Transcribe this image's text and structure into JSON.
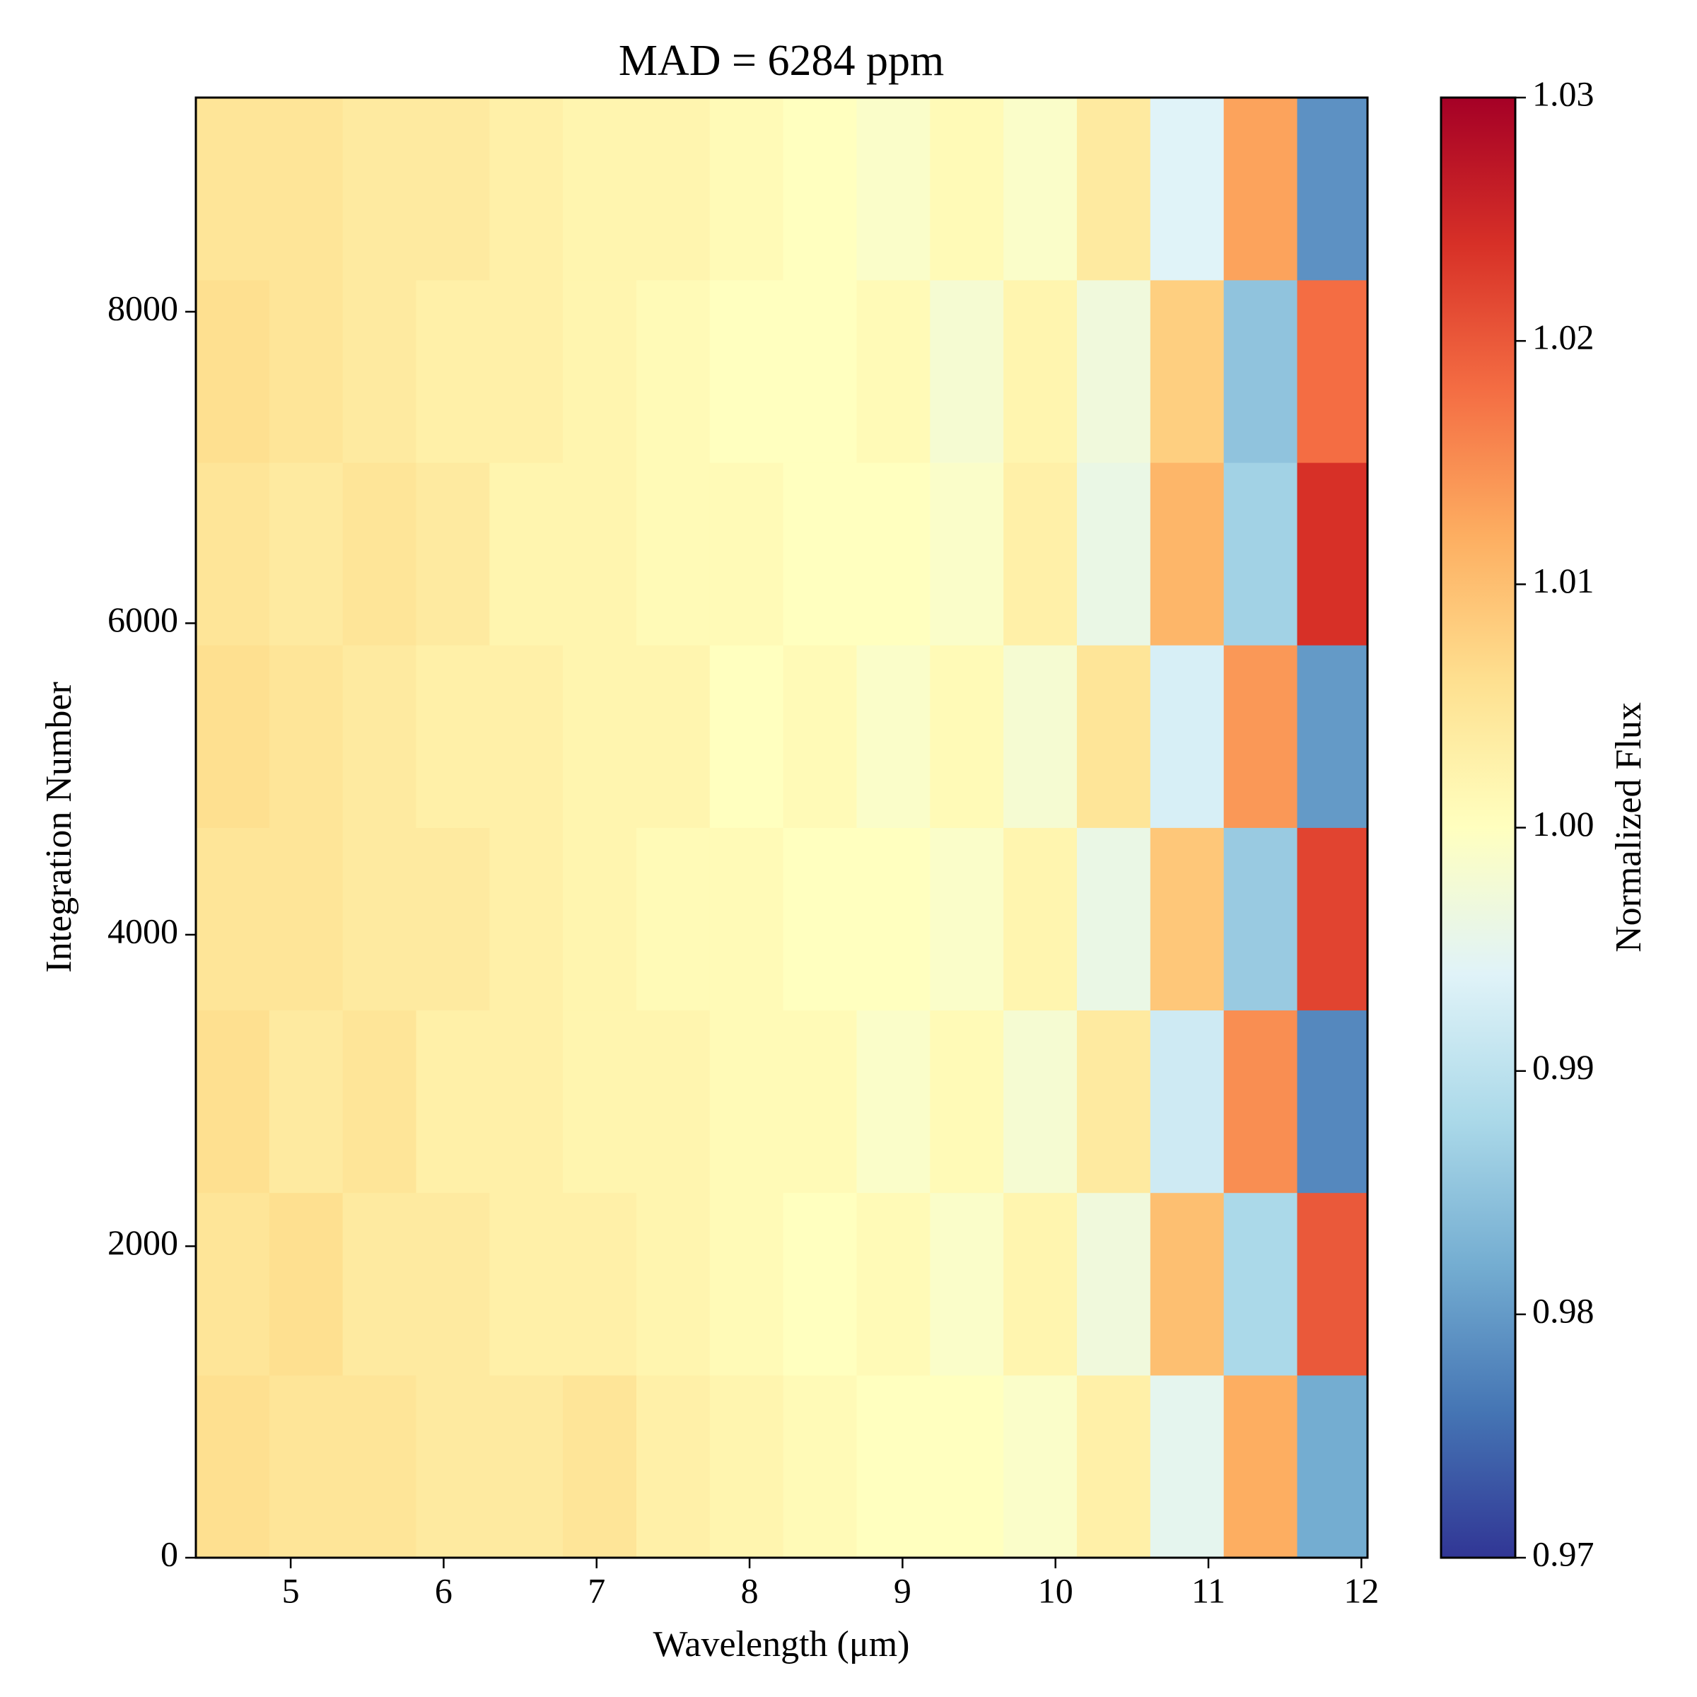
{
  "chart_data": {
    "type": "heatmap",
    "title": "MAD = 6284 ppm",
    "x_label": "Wavelength (μm)",
    "y_label": "Integration Number",
    "colorbar_label": "Normalized Flux",
    "xlim": [
      4.38,
      12.04
    ],
    "ylim": [
      0,
      9375
    ],
    "xticks": [
      5,
      6,
      7,
      8,
      9,
      10,
      11,
      12
    ],
    "yticks": [
      0,
      2000,
      4000,
      6000,
      8000
    ],
    "clim": [
      0.97,
      1.03
    ],
    "cticks": [
      0.97,
      0.98,
      0.99,
      {
        "value": 1,
        "label": "1.00"
      },
      1.01,
      1.02,
      1.03
    ],
    "colormap": [
      "#313695",
      "#4575b4",
      "#74add1",
      "#abd9e9",
      "#e0f3f8",
      "#ffffbf",
      "#fee090",
      "#fdae61",
      "#f46d43",
      "#d73027",
      "#a50026"
    ],
    "x": [
      4.62,
      5.1,
      5.58,
      6.06,
      6.54,
      7.02,
      7.5,
      7.98,
      8.46,
      8.94,
      9.42,
      9.9,
      10.38,
      10.86,
      11.34,
      11.82
    ],
    "y": [
      586,
      1758,
      2930,
      4102,
      5274,
      6446,
      7618,
      8790
    ],
    "z": [
      [
        1.006,
        1.005,
        1.005,
        1.004,
        1.004,
        1.005,
        1.003,
        1.002,
        1.001,
        1.0,
        1.0,
        0.999,
        1.003,
        0.995,
        1.012,
        0.982
      ],
      [
        1.005,
        1.006,
        1.004,
        1.004,
        1.003,
        1.003,
        1.002,
        1.001,
        1.0,
        1.001,
        0.999,
        1.002,
        0.997,
        1.01,
        0.988,
        1.02
      ],
      [
        1.006,
        1.004,
        1.005,
        1.003,
        1.003,
        1.002,
        1.002,
        1.001,
        1.001,
        0.999,
        1.001,
        0.998,
        1.004,
        0.992,
        1.015,
        0.978
      ],
      [
        1.005,
        1.005,
        1.004,
        1.004,
        1.003,
        1.002,
        1.001,
        1.001,
        1.0,
        1.0,
        0.999,
        1.002,
        0.996,
        1.009,
        0.986,
        1.022
      ],
      [
        1.006,
        1.005,
        1.004,
        1.003,
        1.003,
        1.002,
        1.002,
        1.0,
        1.001,
        0.999,
        1.001,
        0.998,
        1.005,
        0.993,
        1.014,
        0.98
      ],
      [
        1.005,
        1.004,
        1.005,
        1.004,
        1.002,
        1.002,
        1.001,
        1.001,
        1.0,
        1.0,
        0.999,
        1.003,
        0.996,
        1.011,
        0.987,
        1.024
      ],
      [
        1.006,
        1.005,
        1.004,
        1.003,
        1.003,
        1.002,
        1.001,
        1.0,
        1.0,
        1.001,
        0.998,
        1.002,
        0.997,
        1.008,
        0.985,
        1.018
      ],
      [
        1.005,
        1.005,
        1.004,
        1.004,
        1.003,
        1.002,
        1.002,
        1.001,
        1.0,
        0.999,
        1.001,
        0.999,
        1.004,
        0.994,
        1.013,
        0.979
      ]
    ]
  }
}
